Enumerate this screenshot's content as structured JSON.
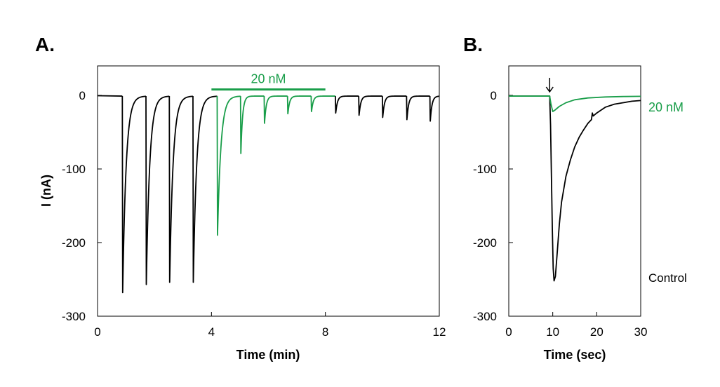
{
  "colors": {
    "control": "#000000",
    "treatment": "#1a9e4a"
  },
  "chart_data": [
    {
      "panel_label": "A.",
      "type": "line",
      "xlabel": "Time (min)",
      "ylabel": "I (nA)",
      "xlim": [
        0,
        12
      ],
      "ylim": [
        -300,
        40
      ],
      "xticks": [
        0,
        4,
        8,
        12
      ],
      "yticks": [
        0,
        -100,
        -200,
        -300
      ],
      "tick_labels_x": [
        "0",
        "4",
        "8",
        "12"
      ],
      "tick_labels_y": [
        "0",
        "-100",
        "-200",
        "-300"
      ],
      "grid": false,
      "drug_bar": {
        "label": "20 nM",
        "x_start": 4.0,
        "x_end": 8.0,
        "y": 8
      },
      "pulses": [
        {
          "t": 0.87,
          "peak": -268,
          "series": "control"
        },
        {
          "t": 1.7,
          "peak": -257,
          "series": "control"
        },
        {
          "t": 2.52,
          "peak": -254,
          "series": "control"
        },
        {
          "t": 3.35,
          "peak": -254,
          "series": "control"
        },
        {
          "t": 4.2,
          "peak": -190,
          "series": "treatment"
        },
        {
          "t": 5.02,
          "peak": -79,
          "series": "treatment"
        },
        {
          "t": 5.85,
          "peak": -38,
          "series": "treatment"
        },
        {
          "t": 6.67,
          "peak": -25,
          "series": "treatment"
        },
        {
          "t": 7.5,
          "peak": -22,
          "series": "treatment"
        },
        {
          "t": 8.35,
          "peak": -24,
          "series": "control"
        },
        {
          "t": 9.17,
          "peak": -27,
          "series": "control"
        },
        {
          "t": 10.0,
          "peak": -30,
          "series": "control"
        },
        {
          "t": 10.85,
          "peak": -33,
          "series": "control"
        },
        {
          "t": 11.67,
          "peak": -35,
          "series": "control"
        }
      ]
    },
    {
      "panel_label": "B.",
      "type": "line",
      "xlabel": "Time (sec)",
      "ylabel": "",
      "xlim": [
        0,
        30
      ],
      "ylim": [
        -300,
        40
      ],
      "xticks": [
        0,
        10,
        20,
        30
      ],
      "yticks": [
        0,
        -100,
        -200,
        -300
      ],
      "tick_labels_x": [
        "0",
        "10",
        "20",
        "30"
      ],
      "tick_labels_y": [
        "0",
        "-100",
        "-200",
        "-300"
      ],
      "grid": false,
      "stimulus_marker_x": 9.3,
      "series": [
        {
          "name": "20 nM",
          "color_key": "treatment",
          "x": [
            0,
            9.3,
            9.6,
            10.0,
            10.5,
            11.5,
            13,
            15,
            18,
            22,
            26,
            30
          ],
          "y": [
            -1,
            -1,
            -12,
            -22,
            -20,
            -15,
            -10,
            -6,
            -3.5,
            -2.2,
            -1.6,
            -1.3
          ]
        },
        {
          "name": "Control",
          "color_key": "control",
          "x": [
            0,
            9.3,
            9.5,
            9.7,
            9.9,
            10.1,
            10.3,
            10.6,
            11,
            11.5,
            12,
            13,
            14,
            15,
            16,
            17,
            18,
            18.8,
            19.0,
            19.2,
            20,
            22,
            24,
            26,
            28,
            30
          ],
          "y": [
            -1,
            -1,
            -40,
            -110,
            -180,
            -235,
            -252,
            -246,
            -215,
            -175,
            -145,
            -110,
            -88,
            -70,
            -57,
            -47,
            -38,
            -33,
            -24,
            -28,
            -24,
            -16,
            -12,
            -10,
            -8,
            -7
          ]
        }
      ]
    }
  ]
}
